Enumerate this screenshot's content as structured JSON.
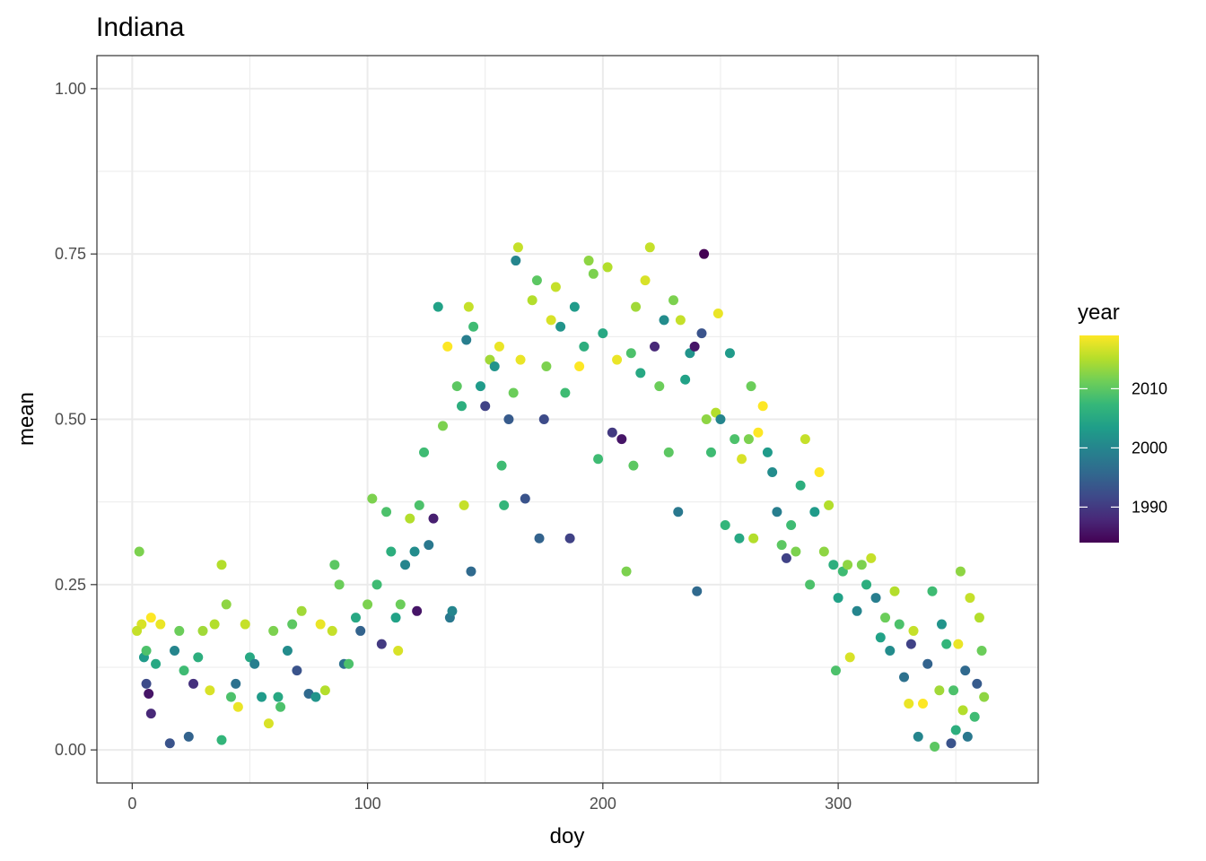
{
  "chart_data": {
    "type": "scatter",
    "title": "Indiana",
    "xlabel": "doy",
    "ylabel": "mean",
    "xlim": [
      -15,
      385
    ],
    "ylim": [
      -0.05,
      1.05
    ],
    "x_ticks": [
      0,
      100,
      200,
      300
    ],
    "x_tick_labels": [
      "0",
      "100",
      "200",
      "300"
    ],
    "y_ticks": [
      0,
      0.25,
      0.5,
      0.75,
      1.0
    ],
    "y_tick_labels": [
      "0.00",
      "0.25",
      "0.50",
      "0.75",
      "1.00"
    ],
    "grid": true,
    "color_variable": "year",
    "legend": {
      "title": "year",
      "position": "right",
      "type": "colorbar",
      "range": [
        1984,
        2019
      ],
      "ticks": [
        1990,
        2000,
        2010
      ],
      "tick_labels": [
        "1990",
        "2000",
        "2010"
      ],
      "palette": [
        "#440154",
        "#482878",
        "#3e4989",
        "#31688e",
        "#26828e",
        "#1f9e89",
        "#35b779",
        "#6ece58",
        "#b5de2b",
        "#fde725"
      ]
    },
    "points": [
      [
        3,
        0.3,
        2012
      ],
      [
        5,
        0.14,
        2003
      ],
      [
        6,
        0.1,
        1992
      ],
      [
        7,
        0.085,
        1986
      ],
      [
        8,
        0.055,
        1988
      ],
      [
        8,
        0.2,
        2019
      ],
      [
        10,
        0.13,
        2005
      ],
      [
        4,
        0.19,
        2017
      ],
      [
        6,
        0.15,
        2009
      ],
      [
        2,
        0.18,
        2016
      ],
      [
        12,
        0.19,
        2018
      ],
      [
        16,
        0.01,
        1993
      ],
      [
        18,
        0.15,
        2000
      ],
      [
        20,
        0.18,
        2011
      ],
      [
        22,
        0.12,
        2008
      ],
      [
        24,
        0.02,
        1995
      ],
      [
        26,
        0.1,
        1989
      ],
      [
        28,
        0.14,
        2006
      ],
      [
        30,
        0.18,
        2014
      ],
      [
        33,
        0.09,
        2017
      ],
      [
        35,
        0.19,
        2015
      ],
      [
        38,
        0.28,
        2015
      ],
      [
        38,
        0.015,
        2007
      ],
      [
        40,
        0.22,
        2013
      ],
      [
        42,
        0.08,
        2009
      ],
      [
        44,
        0.1,
        1997
      ],
      [
        45,
        0.065,
        2018
      ],
      [
        48,
        0.19,
        2016
      ],
      [
        50,
        0.14,
        2005
      ],
      [
        52,
        0.13,
        1999
      ],
      [
        55,
        0.08,
        2003
      ],
      [
        58,
        0.04,
        2017
      ],
      [
        60,
        0.18,
        2012
      ],
      [
        62,
        0.08,
        2005
      ],
      [
        63,
        0.065,
        2009
      ],
      [
        66,
        0.15,
        2001
      ],
      [
        68,
        0.19,
        2010
      ],
      [
        70,
        0.12,
        1993
      ],
      [
        72,
        0.21,
        2014
      ],
      [
        75,
        0.085,
        1996
      ],
      [
        78,
        0.08,
        2002
      ],
      [
        80,
        0.19,
        2018
      ],
      [
        82,
        0.09,
        2015
      ],
      [
        85,
        0.18,
        2016
      ],
      [
        86,
        0.28,
        2010
      ],
      [
        88,
        0.25,
        2011
      ],
      [
        90,
        0.13,
        1997
      ],
      [
        92,
        0.13,
        2009
      ],
      [
        95,
        0.2,
        2005
      ],
      [
        97,
        0.18,
        1995
      ],
      [
        100,
        0.22,
        2012
      ],
      [
        102,
        0.38,
        2012
      ],
      [
        104,
        0.25,
        2008
      ],
      [
        106,
        0.16,
        1990
      ],
      [
        108,
        0.36,
        2009
      ],
      [
        110,
        0.3,
        2006
      ],
      [
        112,
        0.2,
        2004
      ],
      [
        113,
        0.15,
        2017
      ],
      [
        114,
        0.22,
        2011
      ],
      [
        116,
        0.28,
        2000
      ],
      [
        118,
        0.35,
        2015
      ],
      [
        120,
        0.3,
        2001
      ],
      [
        121,
        0.21,
        1986
      ],
      [
        122,
        0.37,
        2009
      ],
      [
        124,
        0.45,
        2008
      ],
      [
        126,
        0.31,
        1998
      ],
      [
        128,
        0.35,
        1987
      ],
      [
        130,
        0.67,
        2004
      ],
      [
        132,
        0.49,
        2012
      ],
      [
        134,
        0.61,
        2019
      ],
      [
        135,
        0.2,
        1998
      ],
      [
        136,
        0.21,
        2000
      ],
      [
        138,
        0.55,
        2010
      ],
      [
        140,
        0.52,
        2006
      ],
      [
        141,
        0.37,
        2016
      ],
      [
        142,
        0.62,
        1999
      ],
      [
        143,
        0.67,
        2016
      ],
      [
        144,
        0.27,
        1996
      ],
      [
        145,
        0.64,
        2008
      ],
      [
        148,
        0.55,
        2003
      ],
      [
        150,
        0.52,
        1991
      ],
      [
        152,
        0.59,
        2014
      ],
      [
        154,
        0.58,
        2002
      ],
      [
        156,
        0.61,
        2018
      ],
      [
        157,
        0.43,
        2008
      ],
      [
        158,
        0.37,
        2007
      ],
      [
        160,
        0.5,
        1994
      ],
      [
        162,
        0.54,
        2011
      ],
      [
        163,
        0.74,
        2000
      ],
      [
        164,
        0.76,
        2016
      ],
      [
        165,
        0.59,
        2018
      ],
      [
        167,
        0.38,
        1993
      ],
      [
        170,
        0.68,
        2015
      ],
      [
        172,
        0.71,
        2010
      ],
      [
        173,
        0.32,
        1995
      ],
      [
        175,
        0.5,
        1992
      ],
      [
        176,
        0.58,
        2012
      ],
      [
        178,
        0.65,
        2017
      ],
      [
        180,
        0.7,
        2016
      ],
      [
        182,
        0.64,
        2002
      ],
      [
        184,
        0.54,
        2008
      ],
      [
        186,
        0.32,
        1991
      ],
      [
        188,
        0.67,
        2003
      ],
      [
        190,
        0.58,
        2019
      ],
      [
        192,
        0.61,
        2006
      ],
      [
        194,
        0.74,
        2013
      ],
      [
        196,
        0.72,
        2012
      ],
      [
        198,
        0.44,
        2008
      ],
      [
        200,
        0.63,
        2005
      ],
      [
        202,
        0.73,
        2015
      ],
      [
        204,
        0.48,
        1990
      ],
      [
        206,
        0.59,
        2018
      ],
      [
        208,
        0.47,
        1986
      ],
      [
        210,
        0.27,
        2012
      ],
      [
        212,
        0.6,
        2009
      ],
      [
        213,
        0.43,
        2010
      ],
      [
        214,
        0.67,
        2014
      ],
      [
        216,
        0.57,
        2005
      ],
      [
        218,
        0.71,
        2017
      ],
      [
        220,
        0.76,
        2016
      ],
      [
        222,
        0.61,
        1988
      ],
      [
        224,
        0.55,
        2011
      ],
      [
        226,
        0.65,
        2001
      ],
      [
        228,
        0.45,
        2010
      ],
      [
        230,
        0.68,
        2012
      ],
      [
        232,
        0.36,
        1998
      ],
      [
        233,
        0.65,
        2016
      ],
      [
        235,
        0.56,
        2004
      ],
      [
        237,
        0.6,
        2002
      ],
      [
        239,
        0.61,
        1986
      ],
      [
        240,
        0.24,
        1996
      ],
      [
        242,
        0.63,
        1993
      ],
      [
        243,
        0.75,
        1984
      ],
      [
        244,
        0.5,
        2013
      ],
      [
        246,
        0.45,
        2008
      ],
      [
        248,
        0.51,
        2015
      ],
      [
        249,
        0.66,
        2018
      ],
      [
        250,
        0.5,
        2000
      ],
      [
        252,
        0.34,
        2007
      ],
      [
        254,
        0.6,
        2003
      ],
      [
        256,
        0.47,
        2009
      ],
      [
        258,
        0.32,
        2005
      ],
      [
        259,
        0.44,
        2017
      ],
      [
        262,
        0.47,
        2012
      ],
      [
        263,
        0.55,
        2011
      ],
      [
        264,
        0.32,
        2015
      ],
      [
        266,
        0.48,
        2019
      ],
      [
        268,
        0.52,
        2019
      ],
      [
        270,
        0.45,
        2003
      ],
      [
        272,
        0.42,
        2001
      ],
      [
        274,
        0.36,
        1999
      ],
      [
        276,
        0.31,
        2010
      ],
      [
        278,
        0.29,
        1991
      ],
      [
        280,
        0.34,
        2008
      ],
      [
        282,
        0.3,
        2012
      ],
      [
        284,
        0.4,
        2006
      ],
      [
        286,
        0.47,
        2016
      ],
      [
        288,
        0.25,
        2009
      ],
      [
        290,
        0.36,
        2003
      ],
      [
        292,
        0.42,
        2019
      ],
      [
        294,
        0.3,
        2013
      ],
      [
        296,
        0.37,
        2015
      ],
      [
        298,
        0.28,
        2006
      ],
      [
        299,
        0.12,
        2009
      ],
      [
        300,
        0.23,
        2004
      ],
      [
        302,
        0.27,
        2008
      ],
      [
        304,
        0.28,
        2013
      ],
      [
        305,
        0.14,
        2017
      ],
      [
        308,
        0.21,
        2000
      ],
      [
        310,
        0.28,
        2012
      ],
      [
        312,
        0.25,
        2006
      ],
      [
        314,
        0.29,
        2016
      ],
      [
        316,
        0.23,
        1999
      ],
      [
        318,
        0.17,
        2004
      ],
      [
        320,
        0.2,
        2011
      ],
      [
        322,
        0.15,
        2001
      ],
      [
        324,
        0.24,
        2015
      ],
      [
        326,
        0.19,
        2009
      ],
      [
        328,
        0.11,
        1997
      ],
      [
        330,
        0.07,
        2018
      ],
      [
        331,
        0.16,
        1991
      ],
      [
        332,
        0.18,
        2016
      ],
      [
        334,
        0.02,
        2000
      ],
      [
        336,
        0.07,
        2019
      ],
      [
        338,
        0.13,
        1995
      ],
      [
        340,
        0.24,
        2008
      ],
      [
        341,
        0.005,
        2010
      ],
      [
        343,
        0.09,
        2014
      ],
      [
        344,
        0.19,
        2002
      ],
      [
        346,
        0.16,
        2007
      ],
      [
        348,
        0.01,
        1993
      ],
      [
        349,
        0.09,
        2009
      ],
      [
        350,
        0.03,
        2006
      ],
      [
        351,
        0.16,
        2018
      ],
      [
        352,
        0.27,
        2013
      ],
      [
        353,
        0.06,
        2015
      ],
      [
        354,
        0.12,
        1996
      ],
      [
        355,
        0.02,
        1998
      ],
      [
        356,
        0.23,
        2016
      ],
      [
        358,
        0.05,
        2008
      ],
      [
        359,
        0.1,
        1994
      ],
      [
        360,
        0.2,
        2015
      ],
      [
        361,
        0.15,
        2011
      ],
      [
        362,
        0.08,
        2013
      ]
    ]
  }
}
